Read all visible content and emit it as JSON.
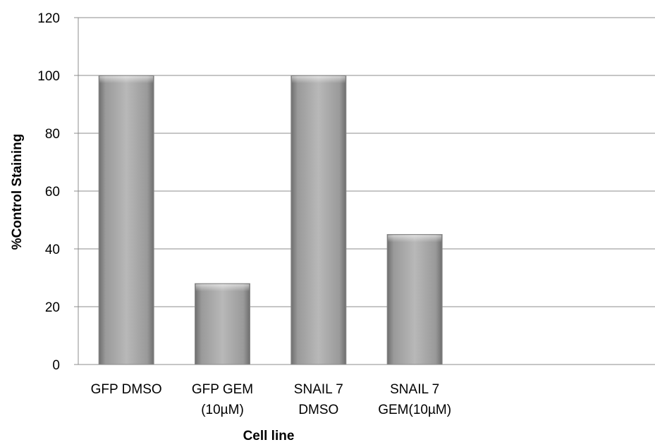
{
  "chart_data": {
    "type": "bar",
    "title": "",
    "xlabel": "Cell line",
    "ylabel": "%Control Staining",
    "ylim": [
      0,
      120
    ],
    "yticks": [
      0,
      20,
      40,
      60,
      80,
      100,
      120
    ],
    "grid": true,
    "legend": "none",
    "categories": [
      [
        "GFP DMSO"
      ],
      [
        "GFP GEM",
        "(10µM)"
      ],
      [
        "SNAIL 7",
        "DMSO"
      ],
      [
        "SNAIL 7",
        "GEM(10µM)"
      ]
    ],
    "values": [
      100,
      28,
      100,
      45
    ],
    "bar_color": "#a6a6a6",
    "bar_color_dark": "#7a7a7a",
    "grid_color": "#8c8c8c"
  }
}
